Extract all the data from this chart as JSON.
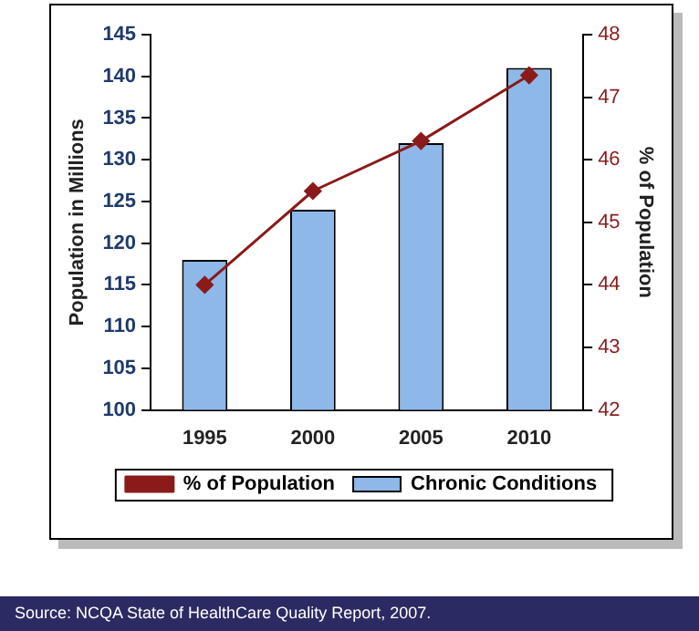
{
  "chart_data": {
    "type": "bar",
    "categories": [
      "1995",
      "2000",
      "2005",
      "2010"
    ],
    "ylabel": "Population in Millions",
    "y2label": "% of Population",
    "series": [
      {
        "name": "Chronic Conditions",
        "color": "#8db8e8",
        "values": [
          118,
          124,
          132,
          141
        ]
      },
      {
        "name": "% of Population",
        "type": "line",
        "axis": "y2",
        "color": "#8b1a1a",
        "values": [
          44,
          45.5,
          46.3,
          47.35
        ]
      }
    ],
    "ylim": [
      100,
      145
    ],
    "yticks": [
      100,
      105,
      110,
      115,
      120,
      125,
      130,
      135,
      140,
      145
    ],
    "y2lim": [
      42,
      48
    ],
    "y2ticks": [
      42,
      43,
      44,
      45,
      46,
      47,
      48
    ],
    "grid": false,
    "legend": "bottom",
    "marker": "diamond",
    "line_style": "solid",
    "annotations": [
      "Source: NCQA State of HealthCare Quality Report, 2007."
    ]
  }
}
